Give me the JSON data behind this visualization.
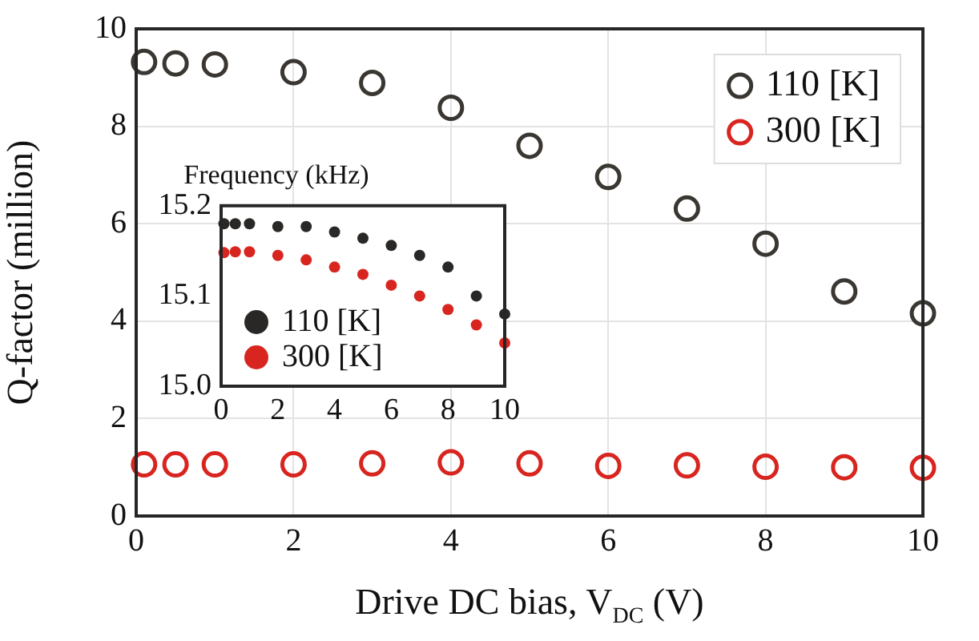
{
  "chart_data": [
    {
      "type": "scatter",
      "xlabel": "Drive DC bias, V$_{DC}$ (V)",
      "ylabel": "Q-factor (million)",
      "x": [
        0.1,
        0.5,
        1,
        2,
        3,
        4,
        5,
        6,
        7,
        8,
        9,
        10
      ],
      "series": [
        {
          "name": "110 [K]",
          "color": "#3a3632",
          "values": [
            9.32,
            9.29,
            9.27,
            9.11,
            8.89,
            8.38,
            7.6,
            6.96,
            6.31,
            5.59,
            4.61,
            4.16
          ]
        },
        {
          "name": "300 [K]",
          "color": "#d8251f",
          "values": [
            1.06,
            1.06,
            1.06,
            1.06,
            1.08,
            1.1,
            1.08,
            1.03,
            1.04,
            1.01,
            1.0,
            0.99
          ]
        }
      ],
      "xlim": [
        0,
        10
      ],
      "ylim": [
        0,
        10
      ],
      "xticks": [
        0,
        2,
        4,
        6,
        8,
        10
      ],
      "yticks": [
        0,
        2,
        4,
        6,
        8,
        10
      ],
      "grid": true,
      "legend": "top right",
      "marker": "circle"
    },
    {
      "type": "scatter",
      "title": "Frequency (kHz)",
      "x": [
        0.1,
        0.5,
        1,
        2,
        3,
        4,
        5,
        6,
        7,
        8,
        9,
        10
      ],
      "series": [
        {
          "name": "110 [K]",
          "color": "#2a2826",
          "values": [
            15.18,
            15.18,
            15.18,
            15.177,
            15.177,
            15.171,
            15.164,
            15.156,
            15.145,
            15.132,
            15.1,
            15.08
          ]
        },
        {
          "name": "300 [K]",
          "color": "#d8251f",
          "values": [
            15.148,
            15.149,
            15.149,
            15.145,
            15.14,
            15.132,
            15.124,
            15.112,
            15.1,
            15.085,
            15.068,
            15.048
          ]
        }
      ],
      "xlim": [
        0,
        10
      ],
      "ylim": [
        15.0,
        15.2
      ],
      "xticks": [
        0,
        2,
        4,
        6,
        8,
        10
      ],
      "yticks": [
        {
          "value": 15.0,
          "label": "15.0"
        },
        15.1,
        15.2
      ],
      "legend": "bottom left",
      "marker": "circle"
    }
  ]
}
